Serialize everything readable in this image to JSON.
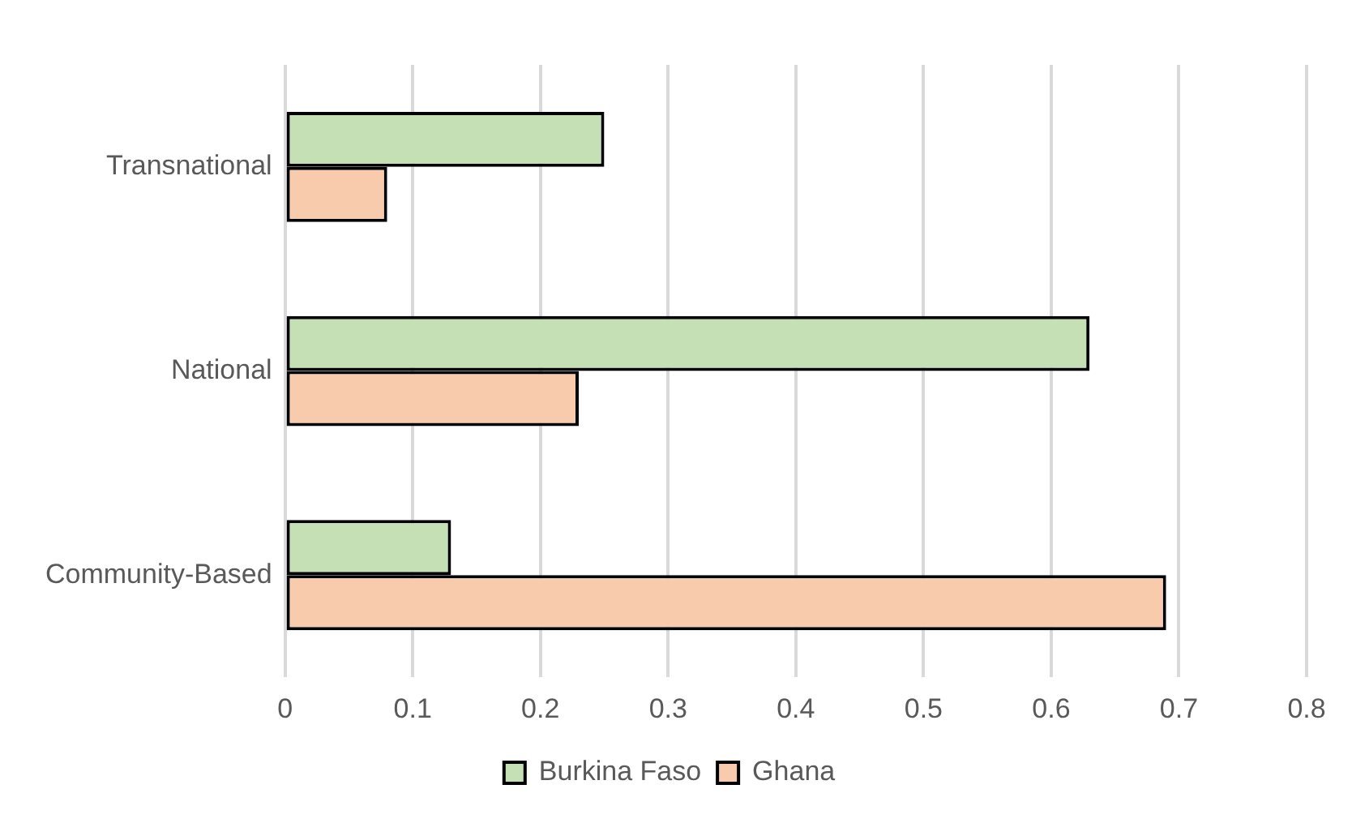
{
  "chart_data": {
    "type": "bar",
    "orientation": "horizontal",
    "categories": [
      "Transnational",
      "National",
      "Community-Based"
    ],
    "series": [
      {
        "name": "Burkina Faso",
        "color": "#c5e0b4",
        "values": [
          0.25,
          0.63,
          0.13
        ]
      },
      {
        "name": "Ghana",
        "color": "#f8cbad",
        "values": [
          0.08,
          0.23,
          0.69
        ]
      }
    ],
    "xlim": [
      0,
      0.8
    ],
    "xticks": [
      0,
      0.1,
      0.2,
      0.3,
      0.4,
      0.5,
      0.6,
      0.7,
      0.8
    ],
    "grid": "x",
    "legend": "bottom"
  }
}
